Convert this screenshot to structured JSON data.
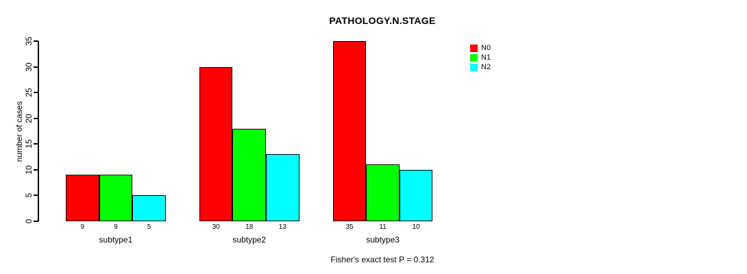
{
  "chart_data": {
    "type": "bar",
    "title": "PATHOLOGY.N.STAGE",
    "xlabel": "",
    "ylabel": "number of cases",
    "categories": [
      "subtype1",
      "subtype2",
      "subtype3"
    ],
    "series": [
      {
        "name": "N0",
        "color": "#FF0000",
        "values": [
          9,
          30,
          35
        ]
      },
      {
        "name": "N1",
        "color": "#00FF00",
        "values": [
          9,
          18,
          11
        ]
      },
      {
        "name": "N2",
        "color": "#00FFFF",
        "values": [
          5,
          13,
          10
        ]
      }
    ],
    "bar_value_labels": [
      [
        9,
        9,
        5
      ],
      [
        30,
        18,
        13
      ],
      [
        35,
        11,
        10
      ]
    ],
    "ylim": [
      0,
      35
    ],
    "yticks": [
      0,
      5,
      10,
      15,
      20,
      25,
      30,
      35
    ],
    "grid": false,
    "legend_position": "top-right",
    "annotation": "Fisher's exact test P = 0.312"
  }
}
